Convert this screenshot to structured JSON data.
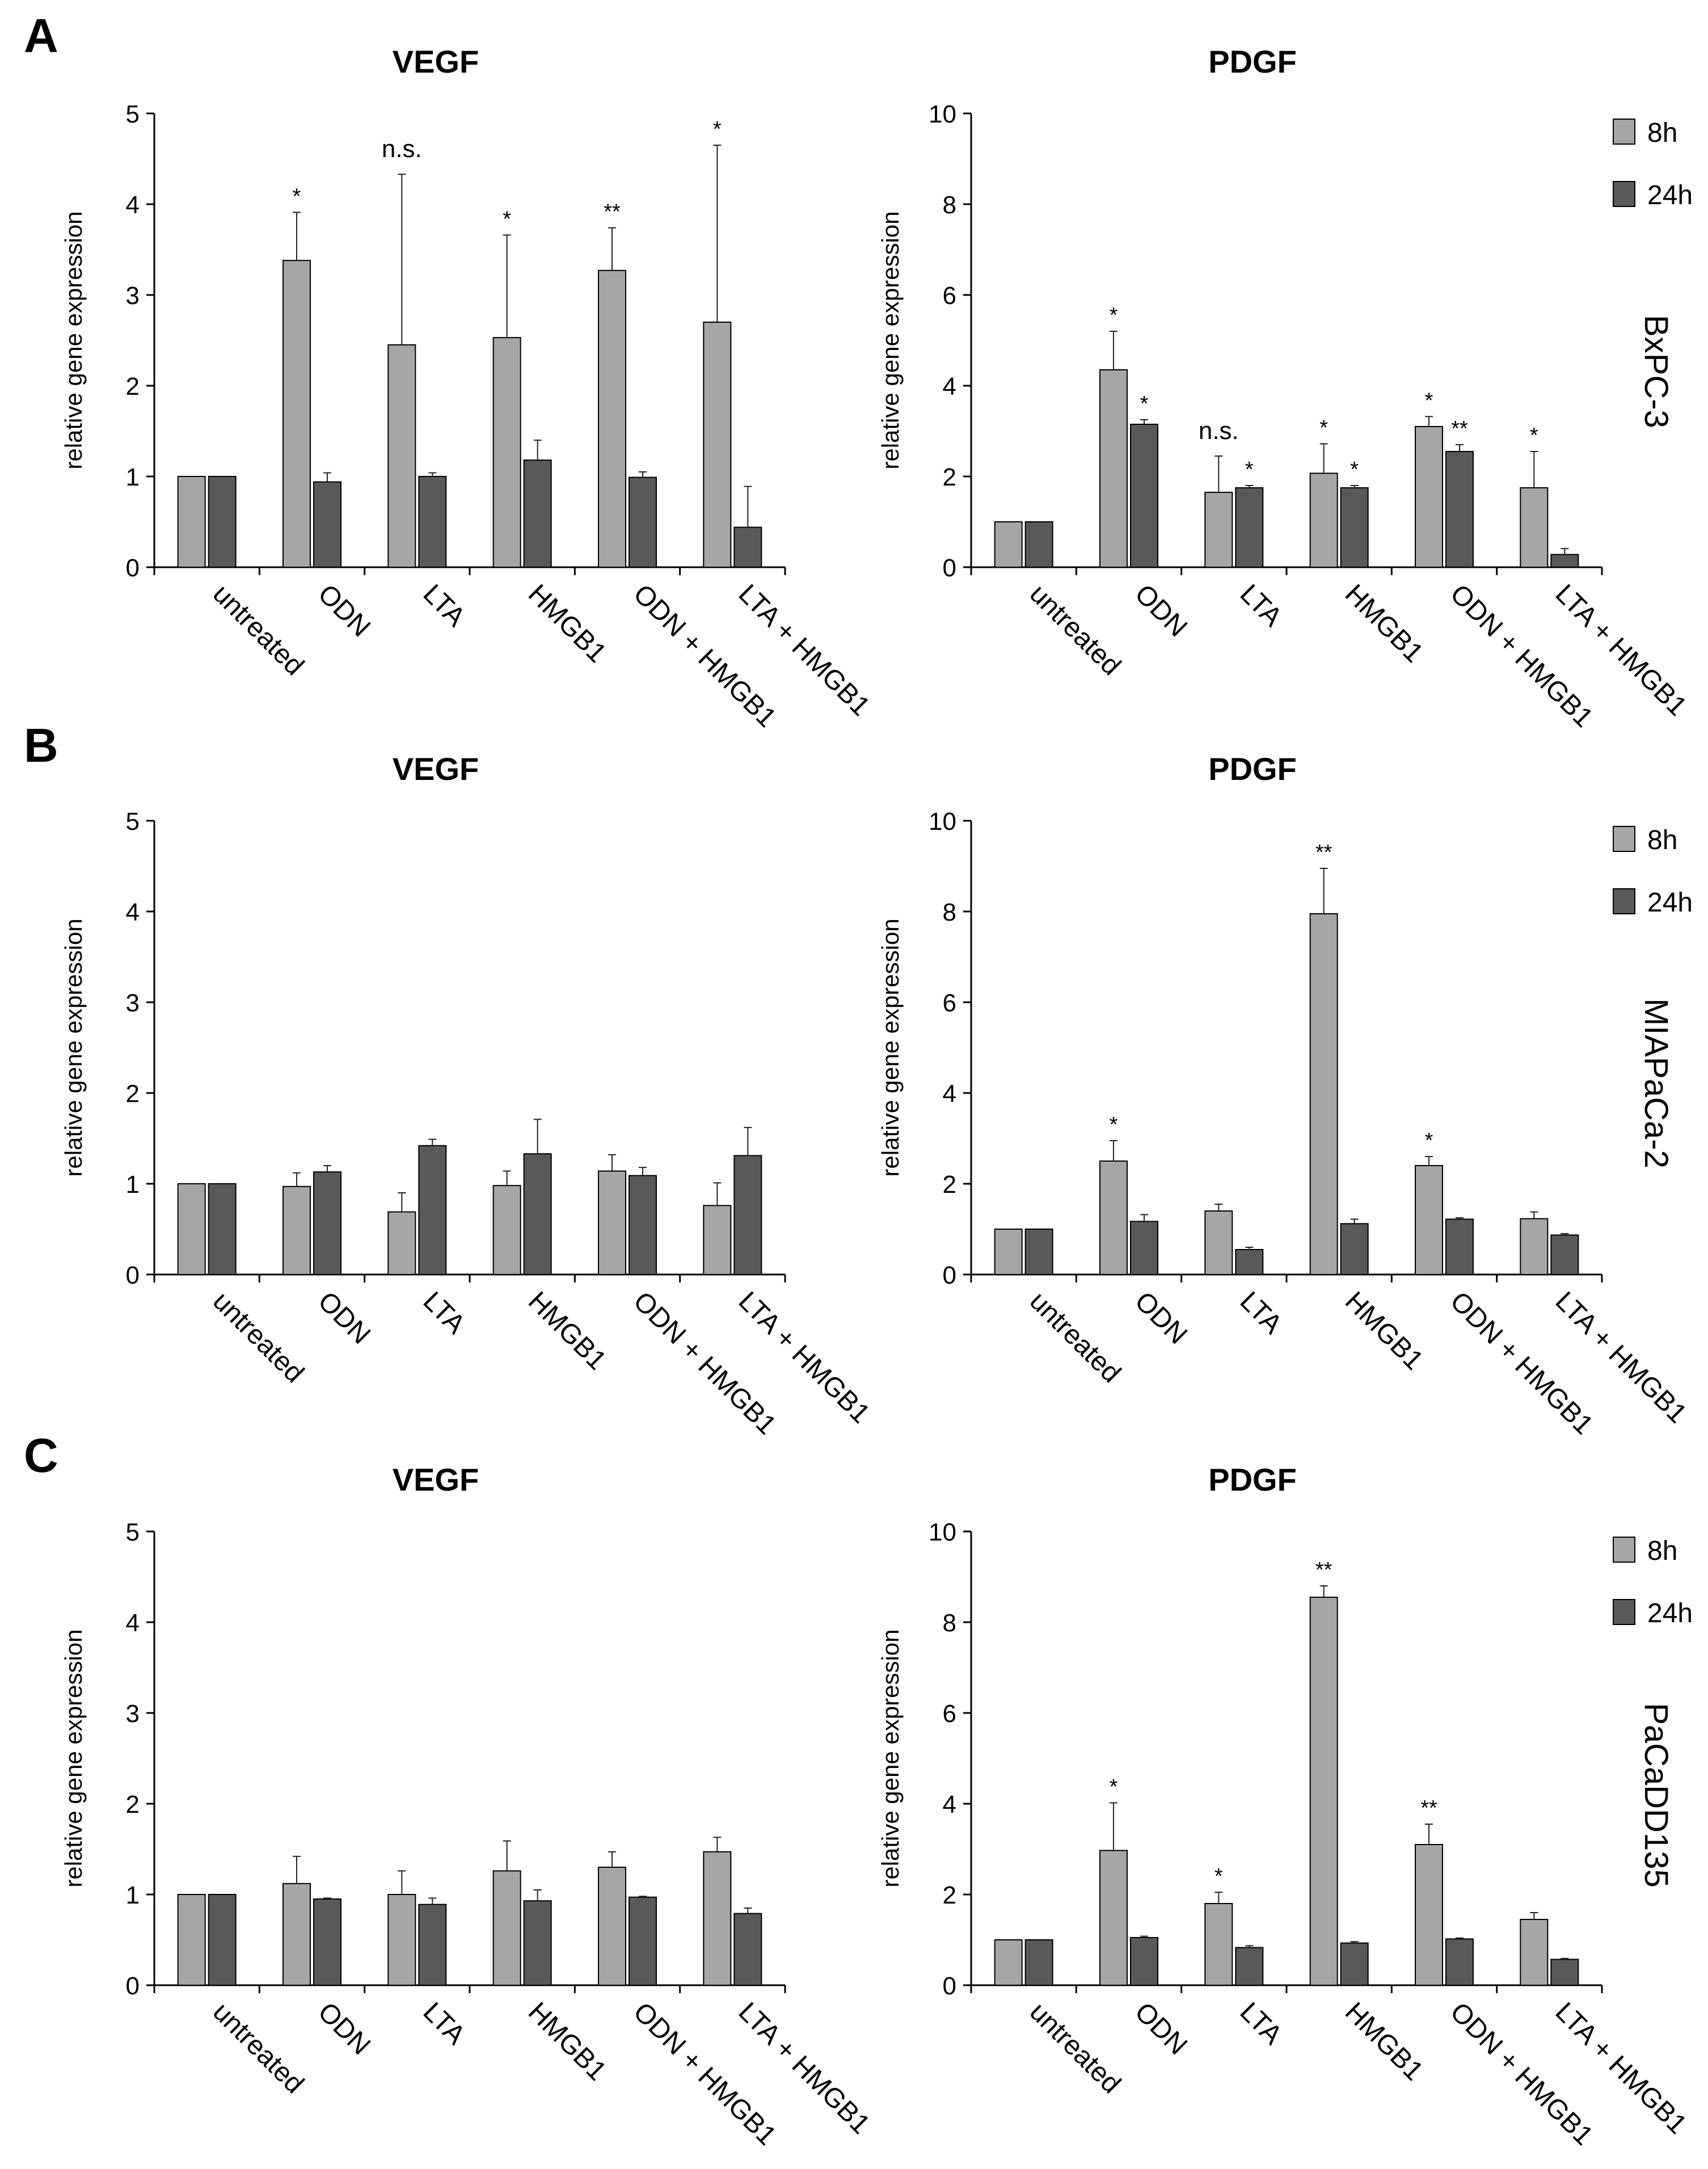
{
  "colors": {
    "series_8h": "#a6a6a6",
    "series_24h": "#595959",
    "axis": "#000000",
    "bar_stroke": "#000000"
  },
  "panels": [
    {
      "letter": "A",
      "cell_line": "BxPC-3"
    },
    {
      "letter": "B",
      "cell_line": "MIAPaCa-2"
    },
    {
      "letter": "C",
      "cell_line": "PaCaDD135"
    }
  ],
  "legend": {
    "series": [
      "8h",
      "24h"
    ]
  },
  "chart_data": [
    {
      "type": "bar",
      "panel": "A",
      "title": "VEGF",
      "ylabel": "relative  gene expression",
      "categories": [
        "untreated",
        "ODN",
        "LTA",
        "HMGB1",
        "ODN + HMGB1",
        "LTA + HMGB1"
      ],
      "ylim": [
        0,
        5
      ],
      "yticks": [
        0,
        1,
        2,
        3,
        4,
        5
      ],
      "grid": false,
      "legend": null,
      "series": [
        {
          "name": "8h",
          "values": [
            1.0,
            3.38,
            2.45,
            2.53,
            3.27,
            2.7
          ],
          "errors": [
            0,
            0.53,
            1.88,
            1.13,
            0.47,
            1.95
          ]
        },
        {
          "name": "24h",
          "values": [
            1.0,
            0.94,
            1.0,
            1.18,
            0.99,
            0.44
          ],
          "errors": [
            0,
            0.1,
            0.04,
            0.22,
            0.06,
            0.45
          ]
        }
      ],
      "annotations": [
        {
          "category": 1,
          "series": 0,
          "text": "*"
        },
        {
          "category": 2,
          "series": 0,
          "text": "n.s."
        },
        {
          "category": 3,
          "series": 0,
          "text": "*"
        },
        {
          "category": 4,
          "series": 0,
          "text": "**"
        },
        {
          "category": 5,
          "series": 0,
          "text": "*"
        }
      ]
    },
    {
      "type": "bar",
      "panel": "A",
      "title": "PDGF",
      "ylabel": "relative  gene expression",
      "categories": [
        "untreated",
        "ODN",
        "LTA",
        "HMGB1",
        "ODN + HMGB1",
        "LTA + HMGB1"
      ],
      "ylim": [
        0,
        10
      ],
      "yticks": [
        0,
        2,
        4,
        6,
        8,
        10
      ],
      "grid": false,
      "legend": "top-right",
      "series": [
        {
          "name": "8h",
          "values": [
            1.0,
            4.35,
            1.65,
            2.07,
            3.1,
            1.75
          ],
          "errors": [
            0,
            0.85,
            0.8,
            0.65,
            0.22,
            0.8
          ]
        },
        {
          "name": "24h",
          "values": [
            1.0,
            3.15,
            1.75,
            1.75,
            2.55,
            0.28
          ],
          "errors": [
            0,
            0.1,
            0.05,
            0.05,
            0.15,
            0.13
          ]
        }
      ],
      "annotations": [
        {
          "category": 1,
          "series": 0,
          "text": "*"
        },
        {
          "category": 1,
          "series": 1,
          "text": "*"
        },
        {
          "category": 2,
          "series": 0,
          "text": "n.s."
        },
        {
          "category": 2,
          "series": 1,
          "text": "*"
        },
        {
          "category": 3,
          "series": 0,
          "text": "*"
        },
        {
          "category": 3,
          "series": 1,
          "text": "*"
        },
        {
          "category": 4,
          "series": 0,
          "text": "*"
        },
        {
          "category": 4,
          "series": 1,
          "text": "**"
        },
        {
          "category": 5,
          "series": 0,
          "text": "*"
        }
      ]
    },
    {
      "type": "bar",
      "panel": "B",
      "title": "VEGF",
      "ylabel": "relative  gene expression",
      "categories": [
        "untreated",
        "ODN",
        "LTA",
        "HMGB1",
        "ODN + HMGB1",
        "LTA + HMGB1"
      ],
      "ylim": [
        0,
        5
      ],
      "yticks": [
        0,
        1,
        2,
        3,
        4,
        5
      ],
      "grid": false,
      "legend": null,
      "series": [
        {
          "name": "8h",
          "values": [
            1.0,
            0.97,
            0.69,
            0.98,
            1.14,
            0.76
          ],
          "errors": [
            0,
            0.15,
            0.21,
            0.16,
            0.18,
            0.25
          ]
        },
        {
          "name": "24h",
          "values": [
            1.0,
            1.13,
            1.42,
            1.33,
            1.09,
            1.31
          ],
          "errors": [
            0,
            0.07,
            0.07,
            0.38,
            0.09,
            0.31
          ]
        }
      ],
      "annotations": []
    },
    {
      "type": "bar",
      "panel": "B",
      "title": "PDGF",
      "ylabel": "relative  gene expression",
      "categories": [
        "untreated",
        "ODN",
        "LTA",
        "HMGB1",
        "ODN + HMGB1",
        "LTA + HMGB1"
      ],
      "ylim": [
        0,
        10
      ],
      "yticks": [
        0,
        2,
        4,
        6,
        8,
        10
      ],
      "grid": false,
      "legend": "top-right",
      "series": [
        {
          "name": "8h",
          "values": [
            1.0,
            2.5,
            1.4,
            7.95,
            2.4,
            1.23
          ],
          "errors": [
            0,
            0.45,
            0.15,
            1.0,
            0.2,
            0.15
          ]
        },
        {
          "name": "24h",
          "values": [
            1.0,
            1.17,
            0.55,
            1.12,
            1.22,
            0.87
          ],
          "errors": [
            0,
            0.15,
            0.05,
            0.1,
            0.03,
            0.03
          ]
        }
      ],
      "annotations": [
        {
          "category": 1,
          "series": 0,
          "text": "*"
        },
        {
          "category": 3,
          "series": 0,
          "text": "**"
        },
        {
          "category": 4,
          "series": 0,
          "text": "*"
        }
      ]
    },
    {
      "type": "bar",
      "panel": "C",
      "title": "VEGF",
      "ylabel": "relative  gene expression",
      "categories": [
        "untreated",
        "ODN",
        "LTA",
        "HMGB1",
        "ODN + HMGB1",
        "LTA + HMGB1"
      ],
      "ylim": [
        0,
        5
      ],
      "yticks": [
        0,
        1,
        2,
        3,
        4,
        5
      ],
      "grid": false,
      "legend": null,
      "series": [
        {
          "name": "8h",
          "values": [
            1.0,
            1.12,
            1.0,
            1.26,
            1.3,
            1.47
          ],
          "errors": [
            0,
            0.3,
            0.26,
            0.33,
            0.17,
            0.16
          ]
        },
        {
          "name": "24h",
          "values": [
            1.0,
            0.95,
            0.89,
            0.93,
            0.97,
            0.79
          ],
          "errors": [
            0,
            0.01,
            0.07,
            0.12,
            0.01,
            0.06
          ]
        }
      ],
      "annotations": []
    },
    {
      "type": "bar",
      "panel": "C",
      "title": "PDGF",
      "ylabel": "relative  gene expression",
      "categories": [
        "untreated",
        "ODN",
        "LTA",
        "HMGB1",
        "ODN + HMGB1",
        "LTA + HMGB1"
      ],
      "ylim": [
        0,
        10
      ],
      "yticks": [
        0,
        2,
        4,
        6,
        8,
        10
      ],
      "grid": false,
      "legend": "top-right",
      "series": [
        {
          "name": "8h",
          "values": [
            1.0,
            2.97,
            1.8,
            8.55,
            3.1,
            1.45
          ],
          "errors": [
            0,
            1.05,
            0.25,
            0.25,
            0.45,
            0.15
          ]
        },
        {
          "name": "24h",
          "values": [
            1.0,
            1.05,
            0.83,
            0.93,
            1.02,
            0.57
          ],
          "errors": [
            0,
            0.03,
            0.04,
            0.03,
            0.02,
            0.02
          ]
        }
      ],
      "annotations": [
        {
          "category": 1,
          "series": 0,
          "text": "*"
        },
        {
          "category": 2,
          "series": 0,
          "text": "*"
        },
        {
          "category": 3,
          "series": 0,
          "text": "**"
        },
        {
          "category": 4,
          "series": 0,
          "text": "**"
        }
      ]
    }
  ]
}
